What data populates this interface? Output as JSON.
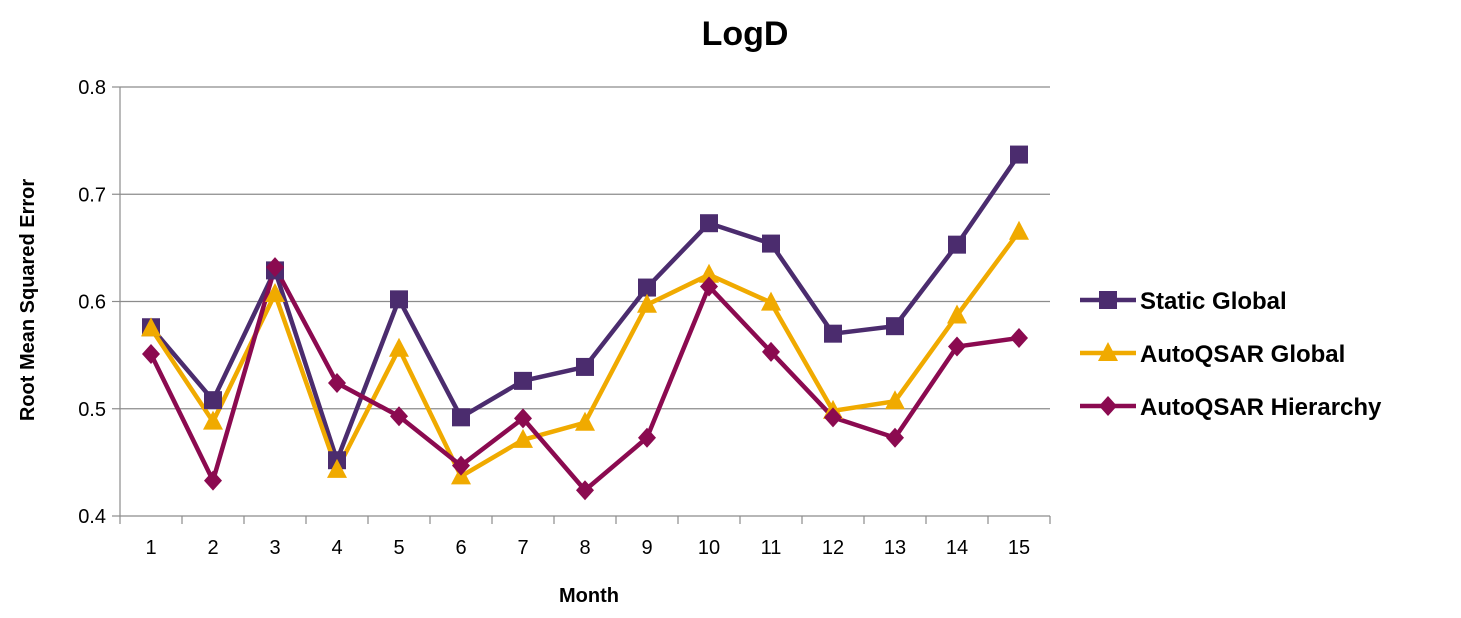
{
  "chart_data": {
    "type": "line",
    "title": "LogD",
    "xlabel": "Month",
    "ylabel": "Root Mean Squared Error",
    "categories": [
      "1",
      "2",
      "3",
      "4",
      "5",
      "6",
      "7",
      "8",
      "9",
      "10",
      "11",
      "12",
      "13",
      "14",
      "15"
    ],
    "ylim": [
      0.4,
      0.8
    ],
    "yticks": [
      "0.4",
      "0.5",
      "0.6",
      "0.7",
      "0.8"
    ],
    "grid": true,
    "legend_position": "right",
    "series": [
      {
        "name": "Static Global",
        "color": "#4b2c6e",
        "marker": "square",
        "values": [
          0.576,
          0.508,
          0.629,
          0.452,
          0.602,
          0.492,
          0.526,
          0.539,
          0.613,
          0.673,
          0.654,
          0.57,
          0.577,
          0.653,
          0.737
        ]
      },
      {
        "name": "AutoQSAR Global",
        "color": "#f0aa00",
        "marker": "triangle",
        "values": [
          0.575,
          0.488,
          0.607,
          0.443,
          0.556,
          0.437,
          0.471,
          0.487,
          0.597,
          0.625,
          0.599,
          0.498,
          0.507,
          0.587,
          0.665
        ]
      },
      {
        "name": "AutoQSAR Hierarchy",
        "color": "#8b0a50",
        "marker": "diamond",
        "values": [
          0.551,
          0.433,
          0.632,
          0.524,
          0.493,
          0.447,
          0.491,
          0.424,
          0.473,
          0.614,
          0.553,
          0.492,
          0.473,
          0.558,
          0.566
        ]
      }
    ]
  }
}
